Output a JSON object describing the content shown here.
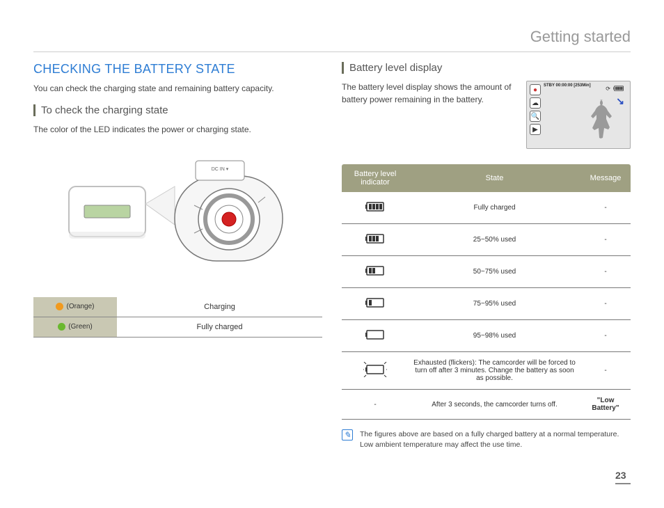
{
  "header": {
    "title": "Getting started"
  },
  "left": {
    "title": "CHECKING THE BATTERY STATE",
    "intro": "You can check the charging state and remaining battery capacity.",
    "sub": "To check the charging state",
    "desc": "The color of the LED indicates the power or charging state.",
    "illustration": {
      "callout_color": "#b9d4a2",
      "frame_color": "#c8c8c8",
      "body_color": "#f2f2f2"
    },
    "led_table": {
      "header_bg": "#c9c8b3",
      "rows": [
        {
          "color": "#f19a1e",
          "label": "(Orange)",
          "state": "Charging"
        },
        {
          "color": "#6ab82f",
          "label": "(Green)",
          "state": "Fully charged"
        }
      ]
    }
  },
  "right": {
    "sub": "Battery level display",
    "desc": "The battery level display shows the amount of battery power remaining in the battery.",
    "lcd": {
      "topline": "STBY 00:00:00 [253Min]",
      "icons": [
        "●",
        "☁",
        "🔍",
        "▶"
      ],
      "side_icon_red": "#c33",
      "silhouette_color": "#9a9a9a",
      "arrow": "↘"
    },
    "table": {
      "header_bg": "#9fa082",
      "headers": [
        "Battery level indicator",
        "State",
        "Message"
      ],
      "rows": [
        {
          "bars": 4,
          "state": "Fully charged",
          "message": "-"
        },
        {
          "bars": 3,
          "state": "25~50% used",
          "message": "-"
        },
        {
          "bars": 2,
          "state": "50~75% used",
          "message": "-"
        },
        {
          "bars": 1,
          "state": "75~95% used",
          "message": "-"
        },
        {
          "bars": 0,
          "outline": true,
          "state": "95~98% used",
          "message": "-"
        },
        {
          "bars": 0,
          "flicker": true,
          "state": "Exhausted (flickers): The camcorder will be forced to turn off after 3 minutes. Change the battery as soon as possible.",
          "message": "-"
        },
        {
          "bars": null,
          "dash": true,
          "state": "After 3 seconds, the camcorder turns off.",
          "message": "\"Low Battery\""
        }
      ]
    },
    "note": "The figures above are based on a fully charged battery at a normal temperature. Low ambient temperature may affect the use time."
  },
  "page_number": "23"
}
